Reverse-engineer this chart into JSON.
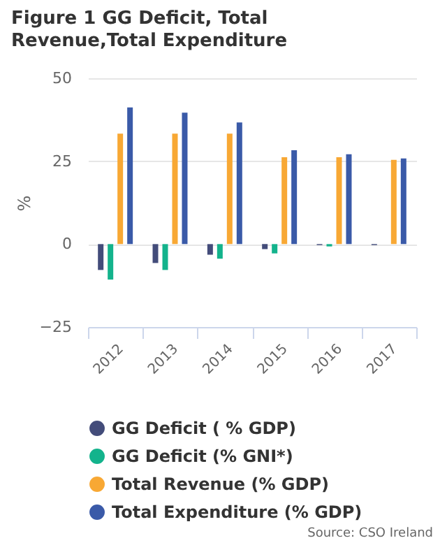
{
  "chart_data": {
    "type": "bar",
    "title": "Figure 1 GG Deficit, Total Revenue,Total Expenditure",
    "ylabel": "%",
    "categories": [
      "2012",
      "2013",
      "2014",
      "2015",
      "2016",
      "2017"
    ],
    "series": [
      {
        "name": "GG Deficit ( % GDP)",
        "color": "#434c7a",
        "values": [
          -7.8,
          -5.7,
          -3.2,
          -1.5,
          -0.3,
          -0.3
        ]
      },
      {
        "name": "GG Deficit (% GNI*)",
        "color": "#13b38c",
        "values": [
          -10.7,
          -7.8,
          -4.4,
          -2.8,
          -0.7,
          null
        ]
      },
      {
        "name": "Total Revenue (% GDP)",
        "color": "#f8a834",
        "values": [
          33.3,
          33.3,
          33.3,
          26.2,
          26.2,
          25.4
        ]
      },
      {
        "name": "Total Expenditure (% GDP)",
        "color": "#3a5aa8",
        "values": [
          41.2,
          39.6,
          36.7,
          28.3,
          27.1,
          25.8
        ]
      }
    ],
    "ylim": [
      -25,
      50
    ],
    "yticks": [
      -25,
      0,
      25,
      50
    ],
    "grid": "y",
    "legend": "bottom",
    "annotations": [
      "Source: CSO Ireland"
    ]
  }
}
